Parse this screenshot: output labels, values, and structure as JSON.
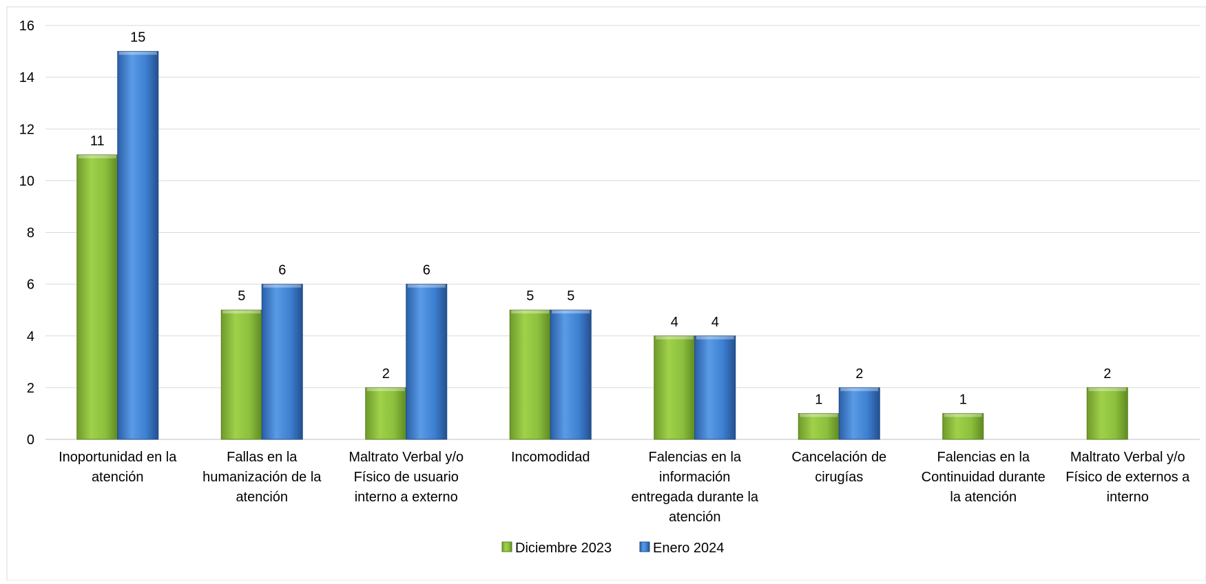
{
  "chart_data": {
    "type": "bar",
    "categories": [
      [
        "Inoportunidad en la",
        "atención"
      ],
      [
        "Fallas en la",
        "humanización de la",
        "atención"
      ],
      [
        "Maltrato Verbal y/o",
        "Físico de usuario",
        "interno a externo"
      ],
      [
        "Incomodidad"
      ],
      [
        "Falencias en la",
        "información",
        "entregada durante la",
        "atención"
      ],
      [
        "Cancelación de",
        "cirugías"
      ],
      [
        "Falencias en la",
        "Continuidad durante",
        "la atención"
      ],
      [
        "Maltrato Verbal y/o",
        "Físico de externos a",
        "interno"
      ]
    ],
    "series": [
      {
        "name": "Diciembre 2023",
        "values": [
          11,
          5,
          2,
          5,
          4,
          1,
          1,
          2
        ],
        "color": "#8cbf3c"
      },
      {
        "name": "Enero 2024",
        "values": [
          15,
          6,
          6,
          5,
          4,
          2,
          null,
          null
        ],
        "color": "#3d7fd1"
      }
    ],
    "yticks": [
      "0",
      "2",
      "4",
      "6",
      "8",
      "10",
      "12",
      "14",
      "16"
    ],
    "ylim": [
      0,
      16
    ],
    "grid": true,
    "legend_position": "bottom"
  }
}
